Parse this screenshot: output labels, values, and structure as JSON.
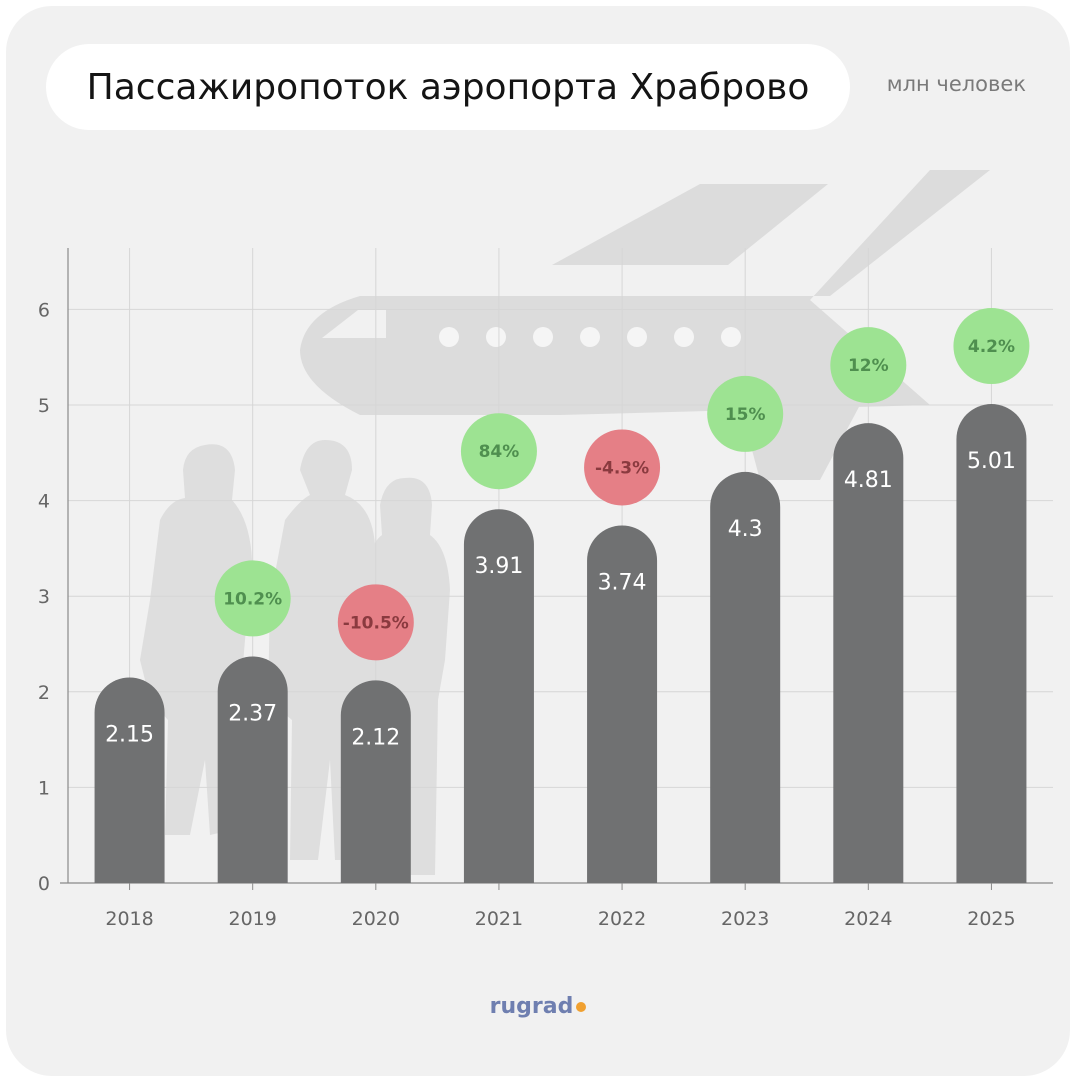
{
  "title": "Пассажиропоток аэропорта Храброво",
  "unit": "млн человек",
  "logo": "rugrad",
  "colors": {
    "bar": "#707172",
    "growth": "#9de392",
    "growth_text": "#4f8f4f",
    "decline": "#e57f86",
    "decline_text": "#8a3a3f",
    "grid": "#d6d6d6",
    "illustration": "#dcdcdc",
    "logo_dot": "#f0a030"
  },
  "chart_data": {
    "type": "bar",
    "categories": [
      "2018",
      "2019",
      "2020",
      "2021",
      "2022",
      "2023",
      "2024",
      "2025"
    ],
    "values": [
      2.15,
      2.37,
      2.12,
      3.91,
      3.74,
      4.3,
      4.81,
      5.01
    ],
    "value_labels": [
      "2.15",
      "2.37",
      "2.12",
      "3.91",
      "3.74",
      "4.3",
      "4.81",
      "5.01"
    ],
    "change_labels": [
      "",
      "10.2%",
      "-10.5%",
      "84%",
      "-4.3%",
      "15%",
      "12%",
      "4.2%"
    ],
    "change_sign": [
      "",
      "up",
      "down",
      "up",
      "down",
      "up",
      "up",
      "up"
    ],
    "yticks": [
      "0",
      "1",
      "2",
      "3",
      "4",
      "5",
      "6"
    ],
    "ylim": [
      0,
      6.6
    ],
    "grid": true,
    "title": "Пассажиропоток аэропорта Храброво",
    "ylabel": "млн человек"
  }
}
